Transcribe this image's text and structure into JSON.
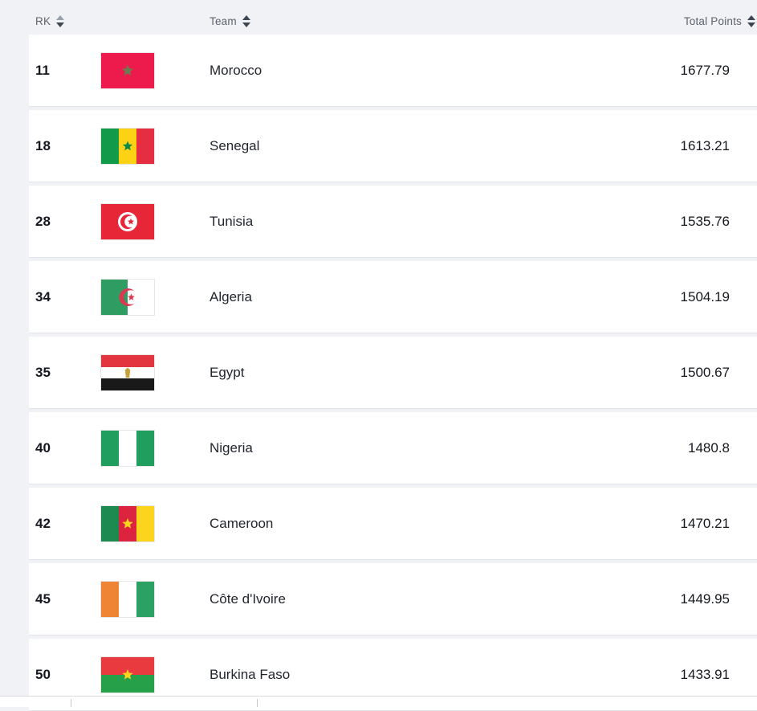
{
  "page": {
    "background": "#f1f2f6"
  },
  "colors": {
    "row_bg": "#ffffff",
    "row_border": "#e1e4e9",
    "header_text": "#5d616c",
    "rank_text": "#15181e",
    "team_text": "#22262e",
    "points_text": "#15181e",
    "sort_arrow_active": "#3e4553",
    "sort_arrow_inactive": "#97a0ad",
    "scroll_strip_border": "#d8dadf",
    "scroll_tick": "#c4c7cc"
  },
  "table": {
    "columns": [
      {
        "key": "rank",
        "label": "RK",
        "sort_icon": "sort-arrows",
        "sorted": "asc"
      },
      {
        "key": "team",
        "label": "Team",
        "sort_icon": "sort-arrows",
        "sorted": "none"
      },
      {
        "key": "points",
        "label": "Total Points",
        "sort_icon": "sort-arrows",
        "sorted": "none"
      }
    ],
    "rows": [
      {
        "rank": "11",
        "team": "Morocco",
        "points": "1677.79",
        "flag": "morocco"
      },
      {
        "rank": "18",
        "team": "Senegal",
        "points": "1613.21",
        "flag": "senegal"
      },
      {
        "rank": "28",
        "team": "Tunisia",
        "points": "1535.76",
        "flag": "tunisia"
      },
      {
        "rank": "34",
        "team": "Algeria",
        "points": "1504.19",
        "flag": "algeria"
      },
      {
        "rank": "35",
        "team": "Egypt",
        "points": "1500.67",
        "flag": "egypt"
      },
      {
        "rank": "40",
        "team": "Nigeria",
        "points": "1480.8",
        "flag": "nigeria"
      },
      {
        "rank": "42",
        "team": "Cameroon",
        "points": "1470.21",
        "flag": "cameroon"
      },
      {
        "rank": "45",
        "team": "Côte d'Ivoire",
        "points": "1449.95",
        "flag": "cotedivoire"
      },
      {
        "rank": "50",
        "team": "Burkina Faso",
        "points": "1433.91",
        "flag": "burkinafaso"
      }
    ],
    "flags": {
      "morocco": {
        "bg": "#ed1a4c",
        "star": "#6d7a52"
      },
      "senegal": {
        "bands": [
          "#109a49",
          "#fdd215",
          "#e62e43"
        ],
        "star": "#0c8a42"
      },
      "tunisia": {
        "bg": "#e72638"
      },
      "algeria": {
        "green": "#2f9c62",
        "red": "#dc3850"
      },
      "egypt": {
        "bands": [
          "#e23540",
          "#ffffff",
          "#191919"
        ],
        "eagle": "#c6a23f"
      },
      "nigeria": {
        "bands": [
          "#1f9e5d",
          "#ffffff",
          "#1f9e5d"
        ]
      },
      "cameroon": {
        "bands": [
          "#1d8b50",
          "#dc2440",
          "#fcd31d"
        ],
        "star": "#fcd31d"
      },
      "cotedivoire": {
        "bands": [
          "#ee8434",
          "#ffffff",
          "#2ba263"
        ]
      },
      "burkinafaso": {
        "top": "#e93a3f",
        "bottom": "#27a149",
        "star": "#fcd51c"
      }
    }
  }
}
